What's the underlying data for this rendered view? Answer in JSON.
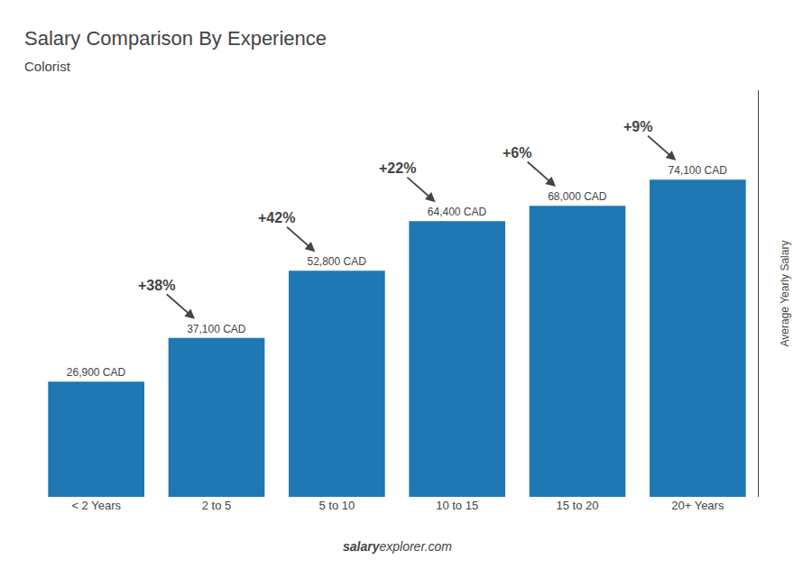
{
  "chart_data": {
    "type": "bar",
    "title": "Salary Comparison By Experience",
    "subtitle": "Colorist",
    "ylabel": "Average Yearly Salary",
    "footer_bold": "salary",
    "footer_regular": "explorer.com",
    "categories": [
      "< 2 Years",
      "2 to 5",
      "5 to 10",
      "10 to 15",
      "15 to 20",
      "20+ Years"
    ],
    "values": [
      26900,
      37100,
      52800,
      64400,
      68000,
      74100
    ],
    "value_labels": [
      "26,900 CAD",
      "37,100 CAD",
      "52,800 CAD",
      "64,400 CAD",
      "68,000 CAD",
      "74,100 CAD"
    ],
    "data_labels": true,
    "annotations": [
      "+38%",
      "+42%",
      "+22%",
      "+6%",
      "+9%"
    ],
    "ylim": [
      0,
      95000
    ],
    "grid": false,
    "tick_labels": "x"
  }
}
